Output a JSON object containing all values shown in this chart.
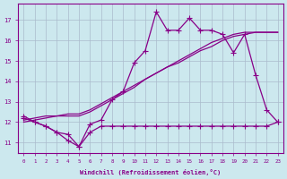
{
  "xlabel": "Windchill (Refroidissement éolien,°C)",
  "bg_color": "#cce8ee",
  "line_color": "#880088",
  "grid_color": "#aabbcc",
  "x_values": [
    0,
    1,
    2,
    3,
    4,
    5,
    6,
    7,
    8,
    9,
    10,
    11,
    12,
    13,
    14,
    15,
    16,
    17,
    18,
    19,
    20,
    21,
    22,
    23
  ],
  "line_top": [
    12.3,
    12.0,
    11.8,
    11.5,
    11.1,
    10.8,
    11.9,
    12.1,
    13.1,
    13.5,
    14.9,
    15.5,
    17.4,
    16.5,
    16.5,
    17.1,
    16.5,
    16.5,
    16.3,
    15.4,
    16.3,
    14.3,
    12.6,
    12.0
  ],
  "line_diag1": [
    12.1,
    12.2,
    12.3,
    12.3,
    12.3,
    12.3,
    12.5,
    12.8,
    13.1,
    13.4,
    13.7,
    14.1,
    14.4,
    14.7,
    15.0,
    15.3,
    15.6,
    15.9,
    16.1,
    16.3,
    16.4,
    16.4,
    16.4,
    16.4
  ],
  "line_diag2": [
    12.0,
    12.1,
    12.2,
    12.3,
    12.4,
    12.4,
    12.6,
    12.9,
    13.2,
    13.5,
    13.8,
    14.1,
    14.4,
    14.7,
    14.9,
    15.2,
    15.5,
    15.7,
    16.0,
    16.2,
    16.3,
    16.4,
    16.4,
    16.4
  ],
  "line_flat": [
    12.2,
    12.0,
    11.8,
    11.5,
    11.4,
    10.8,
    11.5,
    11.8,
    11.8,
    11.8,
    11.8,
    11.8,
    11.8,
    11.8,
    11.8,
    11.8,
    11.8,
    11.8,
    11.8,
    11.8,
    11.8,
    11.8,
    11.8,
    12.0
  ],
  "ylim": [
    10.5,
    17.8
  ],
  "xlim": [
    -0.5,
    23.5
  ],
  "yticks": [
    11,
    12,
    13,
    14,
    15,
    16,
    17
  ],
  "xticks": [
    0,
    1,
    2,
    3,
    4,
    5,
    6,
    7,
    8,
    9,
    10,
    11,
    12,
    13,
    14,
    15,
    16,
    17,
    18,
    19,
    20,
    21,
    22,
    23
  ]
}
